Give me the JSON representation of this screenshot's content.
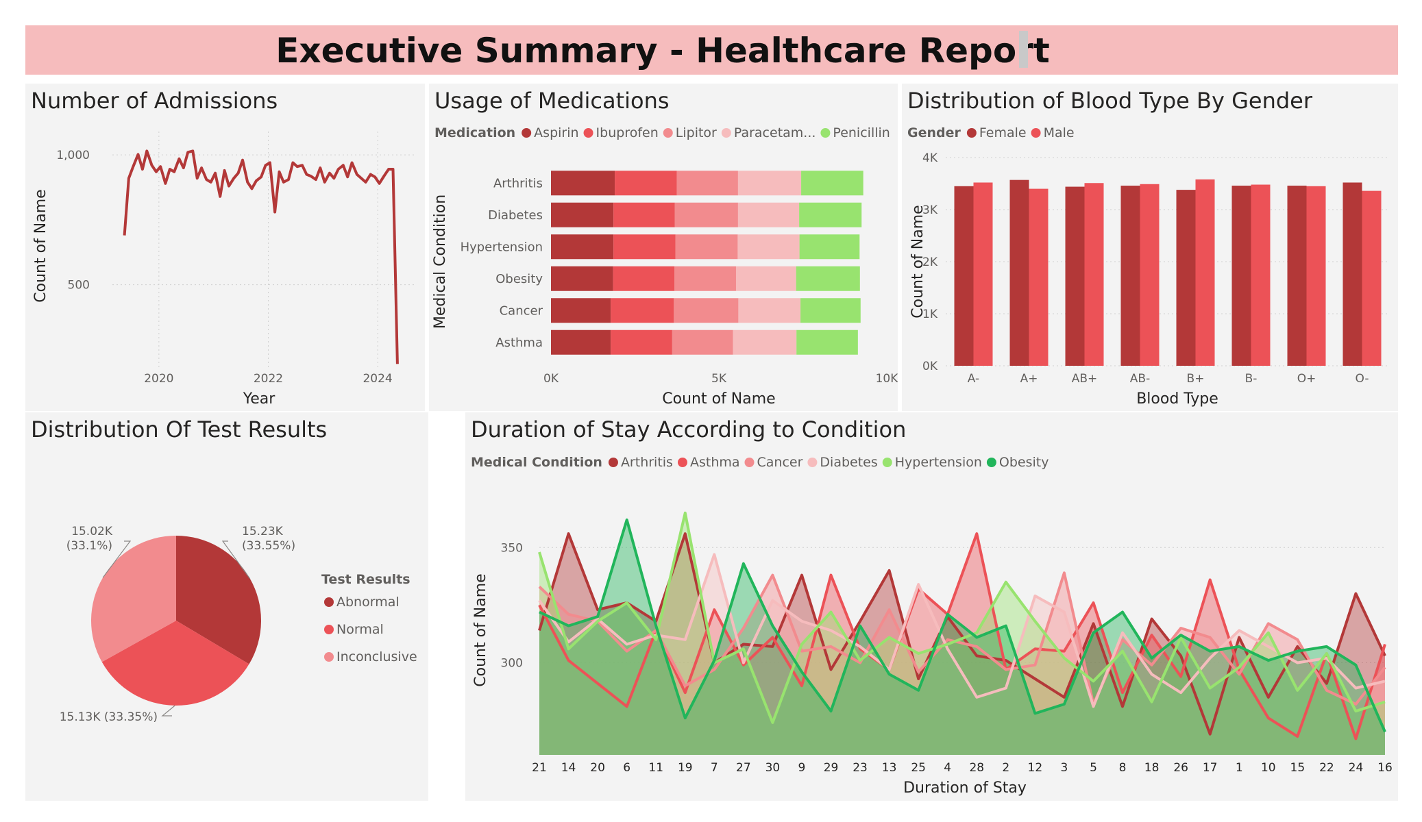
{
  "header": {
    "title": "Executive Summary - Healthcare Report"
  },
  "admissions": {
    "title": "Number of Admissions",
    "chart_data": {
      "type": "line",
      "xlabel": "Year",
      "ylabel": "Count of Name",
      "xlim": [
        2019.15,
        2024.7
      ],
      "ylim": [
        180,
        1090
      ],
      "xticks": [
        2020,
        2022,
        2024
      ],
      "yticks": [
        500,
        1000
      ],
      "ytick_labels": [
        "500",
        "1,000"
      ],
      "color": "#b33838",
      "x": [
        2019.37,
        2019.45,
        2019.53,
        2019.62,
        2019.7,
        2019.78,
        2019.87,
        2019.95,
        2020.03,
        2020.12,
        2020.2,
        2020.28,
        2020.37,
        2020.45,
        2020.53,
        2020.62,
        2020.7,
        2020.78,
        2020.87,
        2020.95,
        2021.03,
        2021.12,
        2021.2,
        2021.28,
        2021.37,
        2021.45,
        2021.53,
        2021.62,
        2021.7,
        2021.78,
        2021.87,
        2021.95,
        2022.03,
        2022.12,
        2022.2,
        2022.28,
        2022.37,
        2022.45,
        2022.53,
        2022.62,
        2022.7,
        2022.78,
        2022.87,
        2022.95,
        2023.03,
        2023.12,
        2023.2,
        2023.28,
        2023.37,
        2023.45,
        2023.53,
        2023.62,
        2023.7,
        2023.78,
        2023.87,
        2023.95,
        2024.03,
        2024.12,
        2024.2,
        2024.28,
        2024.36
      ],
      "y": [
        690,
        910,
        955,
        1002,
        945,
        1015,
        960,
        935,
        955,
        890,
        945,
        935,
        985,
        950,
        1010,
        1015,
        910,
        950,
        905,
        895,
        930,
        840,
        940,
        880,
        910,
        930,
        980,
        895,
        870,
        900,
        915,
        960,
        970,
        780,
        935,
        895,
        905,
        970,
        955,
        960,
        925,
        918,
        905,
        950,
        895,
        930,
        910,
        945,
        960,
        915,
        970,
        925,
        910,
        895,
        925,
        915,
        890,
        920,
        945,
        945,
        195
      ]
    }
  },
  "medications": {
    "title": "Usage of Medications",
    "legend_title": "Medication",
    "legend_labels": [
      "Aspirin",
      "Ibuprofen",
      "Lipitor",
      "Paracetam...",
      "Penicillin"
    ],
    "chart_data": {
      "type": "bar",
      "orientation": "horizontal",
      "stacked": true,
      "categories": [
        "Arthritis",
        "Diabetes",
        "Hypertension",
        "Obesity",
        "Cancer",
        "Asthma"
      ],
      "xlabel": "Count of Name",
      "ylabel": "Medical Condition",
      "xlim": [
        0,
        10000
      ],
      "xticks": [
        0,
        5000,
        10000
      ],
      "xtick_labels": [
        "0K",
        "5K",
        "10K"
      ],
      "series": [
        {
          "name": "Aspirin",
          "color": "#b33838",
          "values": [
            1900,
            1860,
            1860,
            1850,
            1780,
            1780
          ]
        },
        {
          "name": "Ibuprofen",
          "color": "#ec5257",
          "values": [
            1850,
            1830,
            1850,
            1830,
            1880,
            1830
          ]
        },
        {
          "name": "Lipitor",
          "color": "#f28b8e",
          "values": [
            1820,
            1880,
            1850,
            1830,
            1920,
            1810
          ]
        },
        {
          "name": "Paracetamol",
          "color": "#f6bcbd",
          "values": [
            1880,
            1820,
            1840,
            1790,
            1850,
            1890
          ]
        },
        {
          "name": "Penicillin",
          "color": "#98e36f",
          "values": [
            1850,
            1860,
            1790,
            1900,
            1790,
            1830
          ]
        }
      ]
    }
  },
  "bloodtype": {
    "title": "Distribution of Blood Type By Gender",
    "legend_title": "Gender",
    "legend_labels": [
      "Female",
      "Male"
    ],
    "chart_data": {
      "type": "bar",
      "categories": [
        "A-",
        "A+",
        "AB+",
        "AB-",
        "B+",
        "B-",
        "O+",
        "O-"
      ],
      "xlabel": "Blood Type",
      "ylabel": "Count of Name",
      "ylim": [
        0,
        4000
      ],
      "yticks": [
        0,
        1000,
        2000,
        3000,
        4000
      ],
      "ytick_labels": [
        "0K",
        "1K",
        "2K",
        "3K",
        "4K"
      ],
      "series": [
        {
          "name": "Female",
          "color": "#b33838",
          "values": [
            3450,
            3570,
            3440,
            3460,
            3380,
            3460,
            3460,
            3520
          ]
        },
        {
          "name": "Male",
          "color": "#ec5257",
          "values": [
            3520,
            3400,
            3510,
            3490,
            3580,
            3480,
            3450,
            3360
          ]
        }
      ]
    }
  },
  "testresults": {
    "title": "Distribution Of Test Results",
    "legend_title": "Test Results",
    "legend_labels": [
      "Abnormal",
      "Normal",
      "Inconclusive"
    ],
    "chart_data": {
      "type": "pie",
      "labels": [
        "Abnormal",
        "Normal",
        "Inconclusive"
      ],
      "values": [
        15230,
        15130,
        15020
      ],
      "colors": [
        "#b33838",
        "#ec5257",
        "#f28b8e"
      ],
      "data_labels": [
        [
          "15.23K",
          "(33.55%)"
        ],
        [
          "15.13K (33.35%)"
        ],
        [
          "15.02K",
          "(33.1%)"
        ]
      ]
    }
  },
  "duration": {
    "title": "Duration of Stay According to Condition",
    "legend_title": "Medical Condition",
    "legend_labels": [
      "Arthritis",
      "Asthma",
      "Cancer",
      "Diabetes",
      "Hypertension",
      "Obesity"
    ],
    "chart_data": {
      "type": "area",
      "categories": [
        "21",
        "14",
        "20",
        "6",
        "11",
        "19",
        "7",
        "27",
        "30",
        "9",
        "29",
        "23",
        "13",
        "25",
        "4",
        "28",
        "2",
        "12",
        "3",
        "5",
        "8",
        "18",
        "26",
        "17",
        "1",
        "10",
        "15",
        "22",
        "24",
        "16"
      ],
      "xlabel": "Duration of Stay",
      "ylabel": "Count of Name",
      "ylim": [
        260,
        370
      ],
      "yticks": [
        300,
        350
      ],
      "series": [
        {
          "name": "Arthritis",
          "color": "#b33838",
          "values": [
            314,
            356,
            323,
            326,
            318,
            356,
            300,
            308,
            307,
            338,
            297,
            318,
            340,
            293,
            320,
            303,
            301,
            293,
            285,
            317,
            281,
            319,
            303,
            269,
            311,
            285,
            307,
            291,
            330,
            303
          ]
        },
        {
          "name": "Asthma",
          "color": "#ec5257",
          "values": [
            325,
            301,
            291,
            281,
            314,
            287,
            323,
            299,
            311,
            290,
            338,
            306,
            297,
            332,
            321,
            356,
            297,
            306,
            305,
            326,
            287,
            312,
            294,
            336,
            297,
            276,
            268,
            304,
            267,
            308
          ]
        },
        {
          "name": "Cancer",
          "color": "#f28b8e",
          "values": [
            333,
            321,
            318,
            305,
            314,
            290,
            297,
            315,
            338,
            305,
            307,
            300,
            323,
            296,
            310,
            307,
            297,
            299,
            339,
            282,
            310,
            299,
            315,
            311,
            295,
            317,
            310,
            288,
            282,
            298
          ]
        },
        {
          "name": "Diabetes",
          "color": "#f6bcbd",
          "values": [
            327,
            309,
            319,
            308,
            312,
            310,
            347,
            300,
            327,
            318,
            314,
            307,
            297,
            334,
            306,
            285,
            289,
            329,
            322,
            281,
            313,
            295,
            287,
            302,
            314,
            307,
            300,
            302,
            289,
            292
          ]
        },
        {
          "name": "Hypertension",
          "color": "#98e36f",
          "values": [
            348,
            306,
            318,
            326,
            310,
            365,
            300,
            306,
            274,
            308,
            322,
            301,
            311,
            304,
            308,
            313,
            335,
            318,
            302,
            292,
            305,
            283,
            311,
            289,
            298,
            313,
            288,
            304,
            279,
            283
          ]
        },
        {
          "name": "Obesity",
          "color": "#21b55b",
          "values": [
            322,
            316,
            320,
            362,
            316,
            276,
            301,
            343,
            316,
            296,
            279,
            316,
            295,
            288,
            321,
            311,
            316,
            278,
            282,
            313,
            322,
            302,
            312,
            305,
            307,
            301,
            305,
            307,
            299,
            270
          ]
        }
      ]
    }
  }
}
